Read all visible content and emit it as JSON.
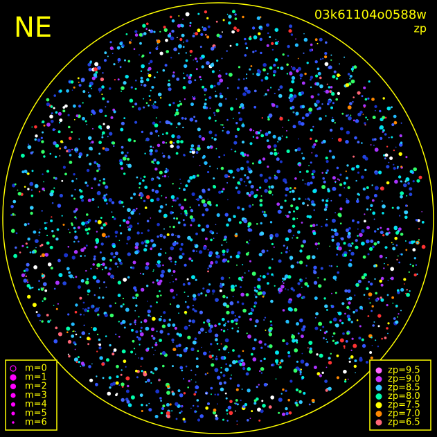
{
  "header": {
    "direction": "NE",
    "frame_id": "03k61104o0588w",
    "subtitle": "zp"
  },
  "magnitude_legend": [
    "m=0",
    "m=1",
    "m=2",
    "m=3",
    "m=4",
    "m=5",
    "m=6"
  ],
  "zp_legend": [
    {
      "label": "zp=9.5",
      "color": "#ff66ff"
    },
    {
      "label": "zp=9.0",
      "color": "#cc33ff"
    },
    {
      "label": "zp=8.5",
      "color": "#33ccff"
    },
    {
      "label": "zp=8.0",
      "color": "#00ffaa"
    },
    {
      "label": "zp=7.5",
      "color": "#ffff00"
    },
    {
      "label": "zp=7.0",
      "color": "#ff8800"
    },
    {
      "label": "zp=6.5",
      "color": "#ff6677"
    }
  ]
}
